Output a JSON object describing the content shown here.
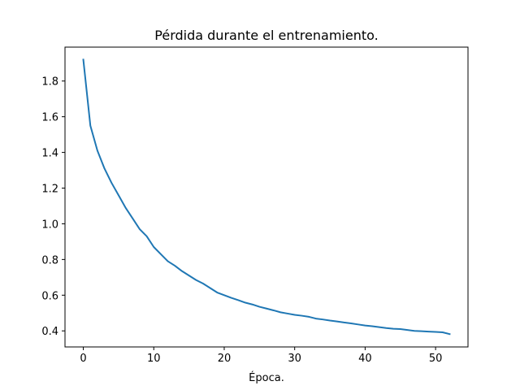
{
  "chart_data": {
    "type": "line",
    "title": "Pérdida durante el entrenamiento.",
    "xlabel": "Época.",
    "ylabel": "",
    "xlim": [
      -2.6,
      54.6
    ],
    "ylim": [
      0.31,
      1.99
    ],
    "x_ticks": [
      0,
      10,
      20,
      30,
      40,
      50
    ],
    "y_ticks": [
      0.4,
      0.6,
      0.8,
      1.0,
      1.2,
      1.4,
      1.6,
      1.8
    ],
    "x_tick_labels": [
      "0",
      "10",
      "20",
      "30",
      "40",
      "50"
    ],
    "y_tick_labels": [
      "0.4",
      "0.6",
      "0.8",
      "1.0",
      "1.2",
      "1.4",
      "1.6",
      "1.8"
    ],
    "grid": false,
    "legend": "none",
    "line_color": "#1f77b4",
    "series": [
      {
        "x": [
          0,
          1,
          2,
          3,
          4,
          5,
          6,
          7,
          8,
          9,
          10,
          11,
          12,
          13,
          14,
          15,
          16,
          17,
          18,
          19,
          20,
          21,
          22,
          23,
          24,
          25,
          26,
          27,
          28,
          29,
          30,
          31,
          32,
          33,
          34,
          35,
          36,
          37,
          38,
          39,
          40,
          41,
          42,
          43,
          44,
          45,
          46,
          47,
          48,
          49,
          50,
          51,
          52
        ],
        "values": [
          1.92,
          1.55,
          1.41,
          1.31,
          1.23,
          1.16,
          1.09,
          1.03,
          0.97,
          0.93,
          0.87,
          0.83,
          0.79,
          0.765,
          0.735,
          0.71,
          0.685,
          0.665,
          0.64,
          0.615,
          0.6,
          0.585,
          0.572,
          0.558,
          0.548,
          0.535,
          0.525,
          0.515,
          0.504,
          0.497,
          0.49,
          0.485,
          0.479,
          0.469,
          0.464,
          0.458,
          0.453,
          0.447,
          0.442,
          0.436,
          0.43,
          0.426,
          0.421,
          0.416,
          0.412,
          0.41,
          0.405,
          0.4,
          0.398,
          0.396,
          0.394,
          0.392,
          0.382
        ]
      }
    ]
  }
}
